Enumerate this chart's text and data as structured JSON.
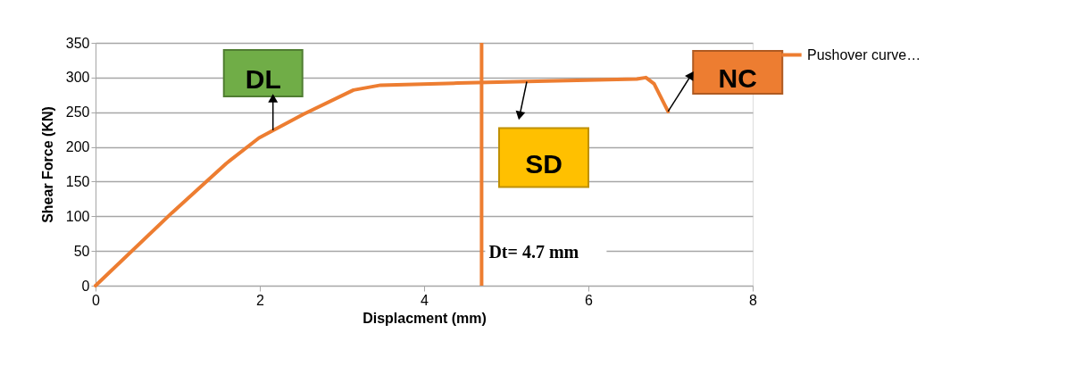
{
  "chart_data": {
    "type": "line",
    "xlabel": "Displacment (mm)",
    "ylabel": "Shear Force (KN)",
    "xlim": [
      0,
      8
    ],
    "xticks": [
      0,
      2,
      4,
      6,
      8
    ],
    "ylim": [
      0,
      350
    ],
    "yticks": [
      0,
      50,
      100,
      150,
      200,
      250,
      300,
      350
    ],
    "grid": "y",
    "legend": "right",
    "marker": "none",
    "line_style": "solid",
    "series": [
      {
        "name": "Pushover curve…",
        "color": "#ed7d31",
        "x": [
          0,
          0.93,
          1.59,
          1.99,
          2.53,
          3.14,
          3.47,
          4.41,
          5.5,
          6.59,
          6.7,
          6.8,
          6.97
        ],
        "values": [
          0,
          105,
          176,
          213,
          247,
          282,
          289,
          292,
          295,
          298,
          300,
          291,
          251
        ]
      }
    ],
    "ref_lines": [
      {
        "axis": "x",
        "value": 4.7,
        "label": "Dt= 4.7 mm",
        "color": "#ed7d31"
      }
    ],
    "annotations": [
      {
        "text": "DL",
        "x": 2.16,
        "y": 224
      },
      {
        "text": "SD",
        "x": 5.25,
        "y": 294
      },
      {
        "text": "NC",
        "x": 6.97,
        "y": 251
      }
    ]
  }
}
